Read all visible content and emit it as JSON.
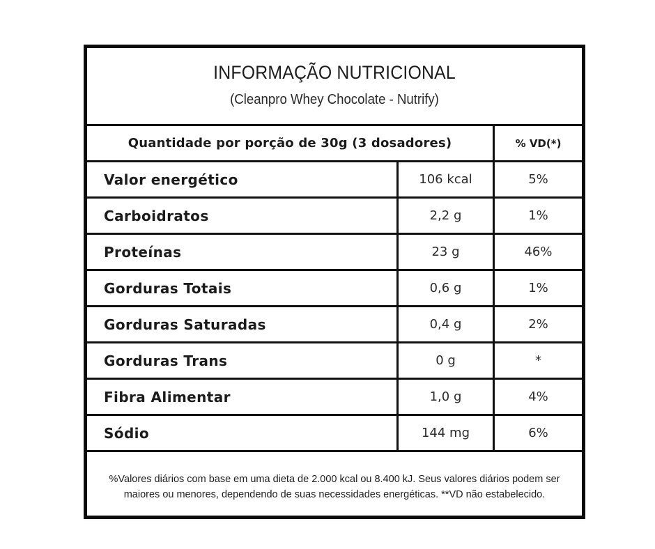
{
  "title": "INFORMAÇÃO NUTRICIONAL",
  "subtitle": "(Cleanpro Whey Chocolate - Nutrify)",
  "header": {
    "serving": "Quantidade por porção de 30g (3 dosadores)",
    "vd": "% VD(*)"
  },
  "rows": [
    {
      "name": "Valor energético",
      "amount": "106 kcal",
      "vd": "5%"
    },
    {
      "name": "Carboidratos",
      "amount": "2,2 g",
      "vd": "1%"
    },
    {
      "name": "Proteínas",
      "amount": "23 g",
      "vd": "46%"
    },
    {
      "name": "Gorduras Totais",
      "amount": "0,6 g",
      "vd": "1%"
    },
    {
      "name": "Gorduras Saturadas",
      "amount": "0,4 g",
      "vd": "2%"
    },
    {
      "name": "Gorduras Trans",
      "amount": "0 g",
      "vd": "*"
    },
    {
      "name": "Fibra Alimentar",
      "amount": "1,0 g",
      "vd": "4%"
    },
    {
      "name": "Sódio",
      "amount": "144 mg",
      "vd": "6%"
    }
  ],
  "footer": {
    "line1": "%Valores diários com base em uma dieta de 2.000 kcal ou 8.400 kJ. Seus valores diários podem ser",
    "line2": "maiores ou menores, dependendo de suas necessidades energéticas. **VD não estabelecido."
  },
  "colors": {
    "border": "#0d0d0d",
    "background": "#ffffff",
    "text": "#1a1a1a"
  }
}
